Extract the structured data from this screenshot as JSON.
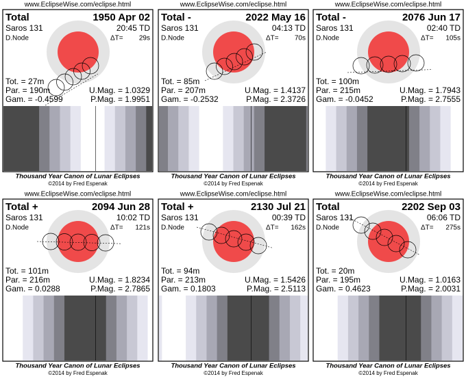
{
  "url": "www.EclipseWise.com/eclipse.html",
  "canon": "Thousand Year Canon of Lunar Eclipses",
  "credit": "©2014 by Fred Espenak",
  "saros": "Saros 131",
  "node": "D.Node",
  "dt_label": "ΔT=",
  "panels": [
    {
      "type": "Total",
      "date": "1950 Apr 02",
      "time": "20:45 TD",
      "dt": "29s",
      "tot": "Tot. =  27m",
      "par": "Par. = 190m",
      "gam": "Gam. = -0.4599",
      "umag": "U.Mag. = 1.0329",
      "pmag": "P.Mag. = 1.9951"
    },
    {
      "type": "Total  -",
      "date": "2022 May 16",
      "time": "04:13 TD",
      "dt": "70s",
      "tot": "Tot. =  85m",
      "par": "Par. = 207m",
      "gam": "Gam. = -0.2532",
      "umag": "U.Mag. = 1.4137",
      "pmag": "P.Mag. = 2.3726"
    },
    {
      "type": "Total  -",
      "date": "2076 Jun 17",
      "time": "02:40 TD",
      "dt": "105s",
      "tot": "Tot. = 100m",
      "par": "Par. = 215m",
      "gam": "Gam. = -0.0452",
      "umag": "U.Mag. = 1.7943",
      "pmag": "P.Mag. = 2.7555"
    },
    {
      "type": "Total  +",
      "date": "2094 Jun 28",
      "time": "10:02 TD",
      "dt": "121s",
      "tot": "Tot. = 101m",
      "par": "Par. = 216m",
      "gam": "Gam. = 0.0288",
      "umag": "U.Mag. = 1.8234",
      "pmag": "P.Mag. = 2.7865"
    },
    {
      "type": "Total  +",
      "date": "2130 Jul 21",
      "time": "00:39 TD",
      "dt": "162s",
      "tot": "Tot. =  94m",
      "par": "Par. = 213m",
      "gam": "Gam. = 0.1803",
      "umag": "U.Mag. = 1.5426",
      "pmag": "P.Mag. = 2.5113"
    },
    {
      "type": "Total",
      "date": "2202 Sep 03",
      "time": "06:06 TD",
      "dt": "275s",
      "tot": "Tot. =  20m",
      "par": "Par. = 195m",
      "gam": "Gam. = 0.4623",
      "umag": "U.Mag. = 1.0163",
      "pmag": "P.Mag. = 2.0031"
    }
  ]
}
